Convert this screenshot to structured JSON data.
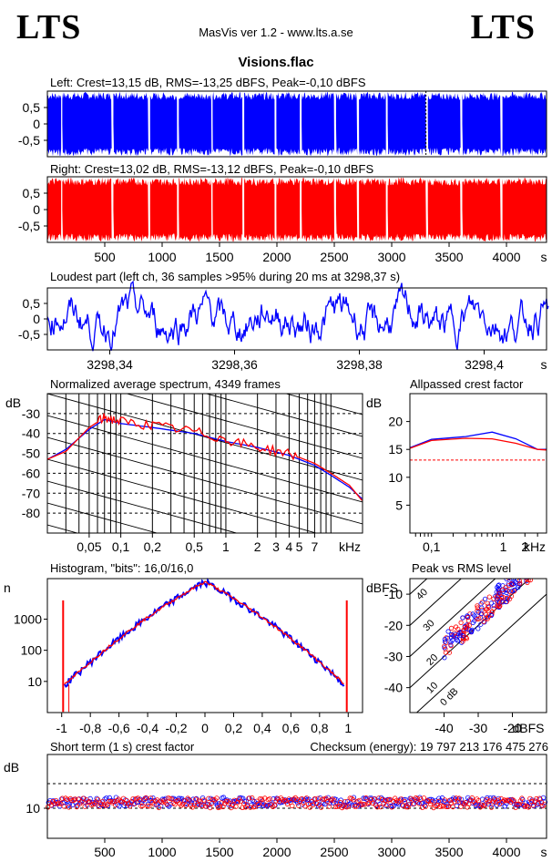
{
  "header": {
    "brand_left": "LTS",
    "brand_right": "LTS",
    "app": "MasVis ver 1.2 - www.lts.a.se",
    "file": "Visions.flac"
  },
  "colors": {
    "left": "#0000ff",
    "right": "#ff0000",
    "axis": "#000000"
  },
  "chart_data": [
    {
      "id": "waveform-left",
      "type": "area",
      "title": "Left: Crest=13,15 dB, RMS=-13,25 dBFS, Peak=-0,10 dBFS",
      "color": "blue",
      "ylim": [
        -1,
        1
      ],
      "yticks": [
        "0,5",
        "0",
        "-0,5"
      ],
      "xlim": [
        0,
        4349
      ],
      "segments": [
        {
          "start": 0,
          "end": 120,
          "amp": 0.98
        },
        {
          "start": 130,
          "end": 560,
          "amp": 0.98
        },
        {
          "start": 575,
          "end": 880,
          "amp": 0.98
        },
        {
          "start": 895,
          "end": 1130,
          "amp": 0.97
        },
        {
          "start": 1145,
          "end": 1430,
          "amp": 0.98
        },
        {
          "start": 1440,
          "end": 1700,
          "amp": 0.98
        },
        {
          "start": 1715,
          "end": 1980,
          "amp": 0.97
        },
        {
          "start": 1995,
          "end": 2200,
          "amp": 0.98
        },
        {
          "start": 2215,
          "end": 2500,
          "amp": 0.98
        },
        {
          "start": 2515,
          "end": 2700,
          "amp": 0.97
        },
        {
          "start": 2715,
          "end": 2950,
          "amp": 0.98
        },
        {
          "start": 2965,
          "end": 3300,
          "amp": 0.98
        },
        {
          "start": 3315,
          "end": 3600,
          "amp": 0.96
        },
        {
          "start": 3615,
          "end": 3950,
          "amp": 0.97
        },
        {
          "start": 3965,
          "end": 4349,
          "amp": 0.98
        }
      ],
      "marker_x": 3298.37
    },
    {
      "id": "waveform-right",
      "type": "area",
      "title": "Right: Crest=13,02 dB, RMS=-13,12 dBFS, Peak=-0,10 dBFS",
      "color": "red",
      "ylim": [
        -1,
        1
      ],
      "yticks": [
        "0,5",
        "0",
        "-0,5"
      ],
      "xlim": [
        0,
        4349
      ],
      "xticks": [
        "500",
        "1000",
        "1500",
        "2000",
        "2500",
        "3000",
        "3500",
        "4000"
      ],
      "xunit": "s"
    },
    {
      "id": "loudest-part",
      "type": "line",
      "title": "Loudest part (left  ch, 36 samples >95% during 20 ms at 3298,37 s)",
      "color": "blue",
      "ylim": [
        -1,
        1
      ],
      "yticks": [
        "0,5",
        "0",
        "-0,5"
      ],
      "xlim": [
        3298.33,
        3298.41
      ],
      "xticks": [
        "3298,34",
        "3298,36",
        "3298,38",
        "3298,4"
      ],
      "xunit": "s"
    },
    {
      "id": "spectrum",
      "type": "line",
      "title": "Normalized average spectrum, 4349 frames",
      "ylabel": "dB",
      "xunit": "kHz",
      "log_x": true,
      "xlim": [
        0.02,
        20
      ],
      "ylim": [
        -90,
        -20
      ],
      "yticks": [
        "-30",
        "-40",
        "-50",
        "-60",
        "-70",
        "-80"
      ],
      "xticks": [
        "0,05",
        "0,1",
        "0,2",
        "0,5",
        "1",
        "2",
        "3",
        "4",
        "5",
        "7"
      ],
      "series": [
        {
          "color": "blue",
          "points": [
            [
              0.02,
              -53
            ],
            [
              0.03,
              -48
            ],
            [
              0.05,
              -38
            ],
            [
              0.07,
              -33
            ],
            [
              0.1,
              -35
            ],
            [
              0.2,
              -37
            ],
            [
              0.5,
              -40
            ],
            [
              1,
              -44
            ],
            [
              2,
              -47
            ],
            [
              4,
              -51
            ],
            [
              7,
              -56
            ],
            [
              10,
              -61
            ],
            [
              15,
              -67
            ],
            [
              20,
              -73
            ]
          ]
        },
        {
          "color": "red",
          "points": [
            [
              0.02,
              -53
            ],
            [
              0.03,
              -49
            ],
            [
              0.05,
              -37
            ],
            [
              0.07,
              -32
            ],
            [
              0.1,
              -34
            ],
            [
              0.2,
              -36
            ],
            [
              0.5,
              -39
            ],
            [
              1,
              -43
            ],
            [
              2,
              -47
            ],
            [
              4,
              -50
            ],
            [
              7,
              -55
            ],
            [
              10,
              -60
            ],
            [
              15,
              -66
            ],
            [
              20,
              -74
            ]
          ]
        }
      ]
    },
    {
      "id": "allpass-crest",
      "type": "line",
      "title": "Allpassed crest factor",
      "ylabel": "dB",
      "xunit": "kHz",
      "log_x": true,
      "xlim": [
        0.05,
        4
      ],
      "ylim": [
        0,
        25
      ],
      "yticks": [
        "20",
        "15",
        "10",
        "5"
      ],
      "xticks": [
        "0,1",
        "1",
        "2"
      ],
      "reference": 13.1,
      "series": [
        {
          "color": "blue",
          "points": [
            [
              0.05,
              15.3
            ],
            [
              0.1,
              16.8
            ],
            [
              0.3,
              17.3
            ],
            [
              0.7,
              18.1
            ],
            [
              1.5,
              16.9
            ],
            [
              3,
              15
            ],
            [
              4,
              15
            ]
          ]
        },
        {
          "color": "red",
          "points": [
            [
              0.05,
              15.2
            ],
            [
              0.1,
              16.6
            ],
            [
              0.3,
              17
            ],
            [
              0.7,
              16.9
            ],
            [
              1.5,
              16.1
            ],
            [
              3,
              15
            ],
            [
              4,
              14.9
            ]
          ]
        }
      ]
    },
    {
      "id": "histogram",
      "type": "line",
      "title": "Histogram, \"bits\": 16,0/16,0",
      "ylabel": "n",
      "log_y": true,
      "xlim": [
        -1.1,
        1.1
      ],
      "ylim": [
        1,
        20000
      ],
      "yticks": [
        "1000",
        "100",
        "10"
      ],
      "xticks": [
        "-1",
        "-0,8",
        "-0,6",
        "-0,4",
        "-0,2",
        "0",
        "0,2",
        "0,4",
        "0,6",
        "0,8",
        "1"
      ]
    },
    {
      "id": "peak-vs-rms",
      "type": "scatter",
      "title": "Peak vs RMS level",
      "ylabel": "dBFS",
      "xlabel": "dBFS",
      "xlim": [
        -50,
        -10
      ],
      "ylim": [
        -48,
        -5
      ],
      "yticks": [
        "-10",
        "-20",
        "-30",
        "-40"
      ],
      "xticks": [
        "-40",
        "-30",
        "-20"
      ],
      "diagonals": [
        "40",
        "30",
        "20",
        "10",
        "0 dB"
      ]
    },
    {
      "id": "short-term-crest",
      "type": "scatter",
      "title": "Short term (1 s) crest factor",
      "checksum": "Checksum (energy):  19 797 213 176 475 276",
      "ylabel": "dB",
      "xlim": [
        0,
        4349
      ],
      "yticks": [
        "10"
      ],
      "xticks": [
        "500",
        "1000",
        "1500",
        "2000",
        "2500",
        "3000",
        "3500",
        "4000"
      ],
      "xunit": "s"
    }
  ]
}
